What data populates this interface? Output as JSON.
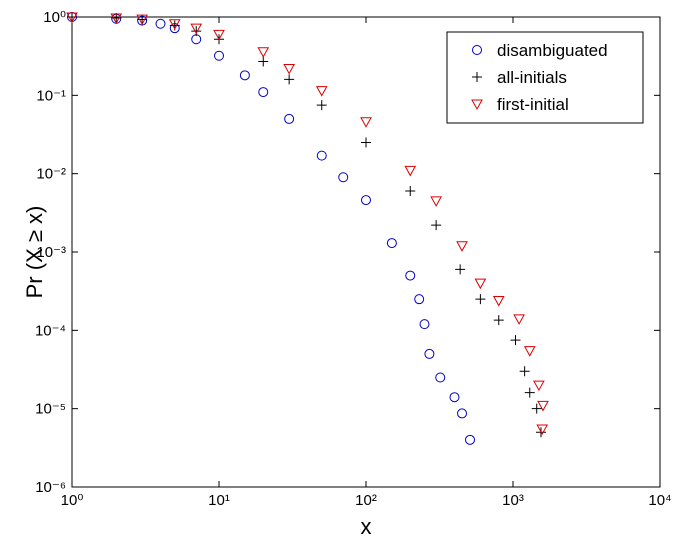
{
  "chart_data": {
    "type": "scatter",
    "x_label": "x",
    "y_label": "Pr (X ≥ x)",
    "xscale": "log",
    "yscale": "log",
    "xlim": [
      1,
      10000
    ],
    "ylim": [
      1e-06,
      1
    ],
    "xticks": [
      {
        "value": 1,
        "label": "10⁰"
      },
      {
        "value": 10,
        "label": "10¹"
      },
      {
        "value": 100,
        "label": "10²"
      },
      {
        "value": 1000,
        "label": "10³"
      },
      {
        "value": 10000,
        "label": "10⁴"
      }
    ],
    "yticks": [
      {
        "value": 1e-06,
        "label": "10⁻⁶"
      },
      {
        "value": 1e-05,
        "label": "10⁻⁵"
      },
      {
        "value": 0.0001,
        "label": "10⁻⁴"
      },
      {
        "value": 0.001,
        "label": "10⁻³"
      },
      {
        "value": 0.01,
        "label": "10⁻²"
      },
      {
        "value": 0.1,
        "label": "10⁻¹"
      },
      {
        "value": 1,
        "label": "10⁰"
      }
    ],
    "legend": "top-right",
    "series": [
      {
        "name": "disambiguated",
        "color": "#0000cc",
        "marker": "circle",
        "x": [
          1,
          2,
          3,
          4,
          5,
          7,
          10,
          15,
          20,
          30,
          50,
          70,
          100,
          150,
          200,
          230,
          250,
          270,
          320,
          400,
          450,
          510
        ],
        "values": [
          1,
          0.95,
          0.9,
          0.82,
          0.72,
          0.52,
          0.32,
          0.18,
          0.11,
          0.05,
          0.017,
          0.009,
          0.0046,
          0.0013,
          0.0005,
          0.00025,
          0.00012,
          5e-05,
          2.5e-05,
          1.4e-05,
          8.7e-06,
          4e-06
        ]
      },
      {
        "name": "all-initials",
        "color": "#000000",
        "marker": "plus",
        "x": [
          1,
          2,
          3,
          5,
          7,
          10,
          20,
          30,
          50,
          100,
          200,
          300,
          437,
          600,
          800,
          1040,
          1200,
          1300,
          1450,
          1550
        ],
        "values": [
          1,
          0.97,
          0.93,
          0.78,
          0.66,
          0.52,
          0.27,
          0.16,
          0.075,
          0.025,
          0.006,
          0.0022,
          0.0006,
          0.00025,
          0.000135,
          7.5e-05,
          3e-05,
          1.6e-05,
          1e-05,
          5e-06
        ]
      },
      {
        "name": "first-initial",
        "color": "#dd0000",
        "marker": "triangle-down",
        "x": [
          1,
          2,
          3,
          5,
          7,
          10,
          20,
          30,
          50,
          100,
          200,
          300,
          450,
          600,
          800,
          1100,
          1300,
          1500,
          1600,
          1580
        ],
        "values": [
          1,
          0.97,
          0.94,
          0.82,
          0.72,
          0.6,
          0.36,
          0.22,
          0.115,
          0.046,
          0.011,
          0.0045,
          0.0012,
          0.0004,
          0.00024,
          0.00014,
          5.5e-05,
          2e-05,
          1.1e-05,
          5.5e-06
        ]
      }
    ]
  }
}
